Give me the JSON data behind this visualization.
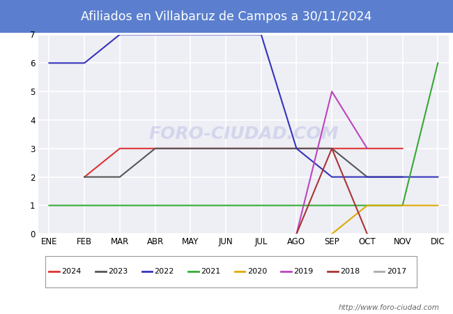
{
  "title": "Afiliados en Villabaruz de Campos a 30/11/2024",
  "title_bg_color": "#5b7fce",
  "title_text_color": "white",
  "ylim": [
    0.0,
    7.0
  ],
  "yticks": [
    0.0,
    1.0,
    2.0,
    3.0,
    4.0,
    5.0,
    6.0,
    7.0
  ],
  "months": [
    "ENE",
    "FEB",
    "MAR",
    "ABR",
    "MAY",
    "JUN",
    "JUL",
    "AGO",
    "SEP",
    "OCT",
    "NOV",
    "DIC"
  ],
  "watermark": "http://www.foro-ciudad.com",
  "series": {
    "2024": {
      "color": "#dd3333",
      "data": {
        "FEB": 2.0,
        "MAR": 3.0,
        "ABR": 3.0,
        "MAY": 3.0,
        "JUN": 3.0,
        "JUL": 3.0,
        "AGO": 3.0,
        "SEP": 3.0,
        "OCT": 3.0,
        "NOV": 3.0
      }
    },
    "2023": {
      "color": "#555555",
      "data": {
        "FEB": 2.0,
        "MAR": 2.0,
        "ABR": 3.0,
        "MAY": 3.0,
        "JUN": 3.0,
        "JUL": 3.0,
        "AGO": 3.0,
        "SEP": 3.0,
        "OCT": 2.0,
        "NOV": 2.0
      }
    },
    "2022": {
      "color": "#3333bb",
      "data": {
        "ENE": 6.0,
        "FEB": 6.0,
        "MAR": 7.0,
        "ABR": 7.0,
        "MAY": 7.0,
        "JUN": 7.0,
        "JUL": 7.0,
        "AGO": 3.0,
        "SEP": 2.0,
        "OCT": 2.0,
        "NOV": 2.0,
        "DIC": 2.0
      }
    },
    "2021": {
      "color": "#33aa33",
      "data": {
        "ENE": 1.0,
        "FEB": 1.0,
        "MAR": 1.0,
        "ABR": 1.0,
        "MAY": 1.0,
        "JUN": 1.0,
        "JUL": 1.0,
        "AGO": 1.0,
        "SEP": 1.0,
        "OCT": 1.0,
        "NOV": 1.0,
        "DIC": 6.0
      }
    },
    "2020": {
      "color": "#ddaa00",
      "data": {
        "SEP": 0.0,
        "OCT": 1.0,
        "NOV": 1.0,
        "DIC": 1.0
      }
    },
    "2019": {
      "color": "#bb44bb",
      "data": {
        "AGO": 0.0,
        "SEP": 5.0,
        "OCT": 3.0
      }
    },
    "2018": {
      "color": "#aa3333",
      "data": {
        "AGO": 0.0,
        "SEP": 3.0,
        "OCT": 0.0
      }
    },
    "2017": {
      "color": "#aaaaaa",
      "data": {}
    }
  },
  "legend_order": [
    "2024",
    "2023",
    "2022",
    "2021",
    "2020",
    "2019",
    "2018",
    "2017"
  ],
  "bg_plot_color": "#eeeef5",
  "fig_bg_color": "#ffffff",
  "grid_color": "#ffffff",
  "watermark_text": "FORO-CIUDAD.COM",
  "watermark_color": "#c8cce8",
  "watermark_alpha": 0.7
}
